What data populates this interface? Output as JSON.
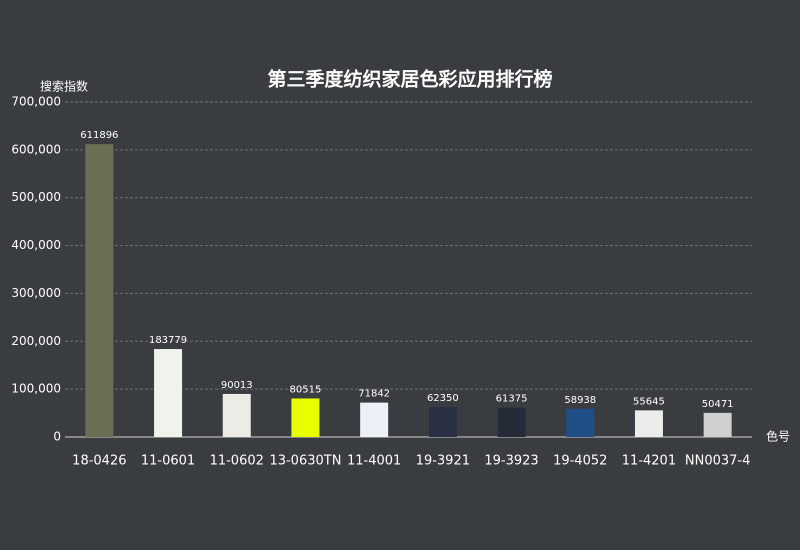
{
  "chart_data": {
    "type": "bar",
    "title": "第三季度纺织家居色彩应用排行榜",
    "y_label": "搜索指数",
    "x_label": "色号",
    "categories": [
      "18-0426",
      "11-0601",
      "11-0602",
      "13-0630TN",
      "11-4001",
      "19-3921",
      "19-3923",
      "19-4052",
      "11-4201",
      "NN0037-4"
    ],
    "values": [
      611896,
      183779,
      90013,
      80515,
      71842,
      62350,
      61375,
      58938,
      55645,
      50471
    ],
    "colors": [
      "#6b6f55",
      "#f2f2ec",
      "#ecebe5",
      "#e8ff00",
      "#eef0f8",
      "#2a3044",
      "#262b3a",
      "#1f4e87",
      "#ececea",
      "#cfcfcf"
    ],
    "ylim": [
      0,
      700000
    ],
    "yticks": [
      0,
      {
        "value": 100000,
        "label": "100,000"
      },
      {
        "value": 200000,
        "label": "200,000"
      },
      {
        "value": 300000,
        "label": "300,000"
      },
      {
        "value": 400000,
        "label": "400,000"
      },
      {
        "value": 500000,
        "label": "500,000"
      },
      {
        "value": 600000,
        "label": "600,000"
      },
      {
        "value": 700000,
        "label": "700,000"
      }
    ],
    "grid": true
  }
}
